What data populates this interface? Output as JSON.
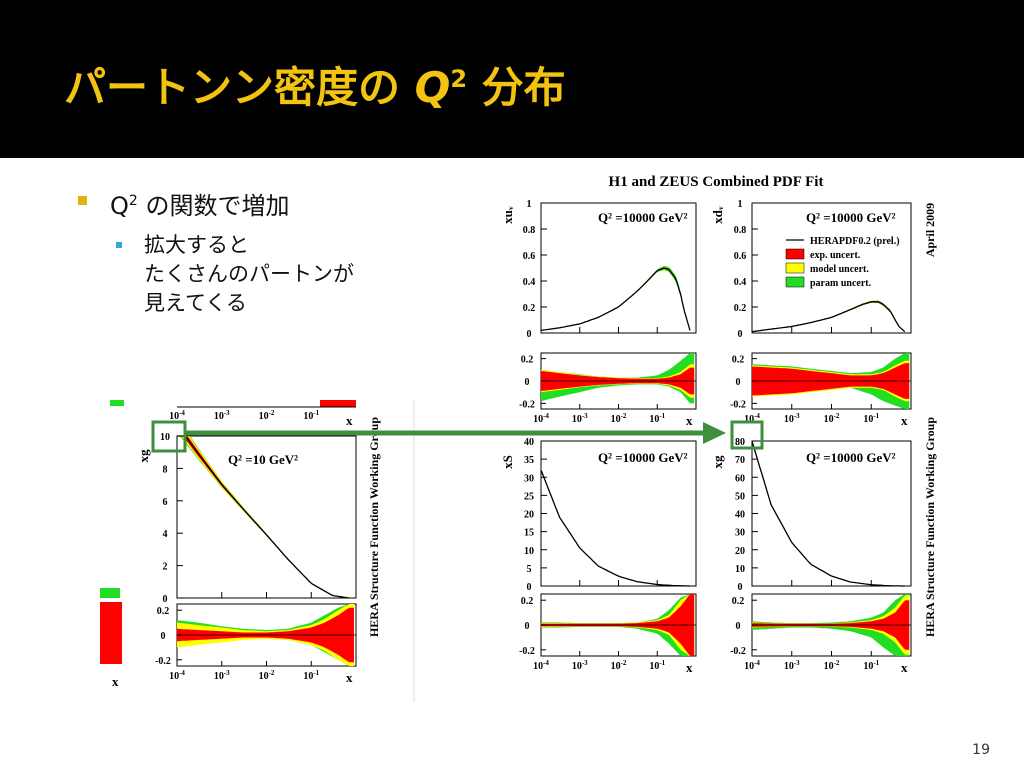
{
  "slide": {
    "title_pre": "パートンン密度の ",
    "title_q": "Q",
    "title_sup": "2",
    "title_post": " 分布",
    "page_number": "19"
  },
  "bullets": {
    "level1_pre": "Q",
    "level1_sup": "2",
    "level1_post": " の関数で増加",
    "level2_lines": [
      "拡大すると",
      "たくさんのパートンが",
      "見えてくる"
    ]
  },
  "colors": {
    "title_bar": "#000000",
    "title_text": "#f2c40f",
    "bullet1": "#e2b210",
    "bullet2": "#3aa6d8",
    "exp_band": "#ff0000",
    "model_band": "#ffff00",
    "param_band": "#22dd22",
    "highlight": "#3f8f3f"
  },
  "chart_data": [
    {
      "type": "area",
      "title": "H1 and ZEUS Combined PDF Fit",
      "side_label": "April 2009",
      "legend": {
        "placement": "top-right of xd_v panel",
        "entries": [
          "HERAPDF0.2 (prel.)",
          "exp. uncert.",
          "model uncert.",
          "param uncert."
        ]
      },
      "panels": [
        {
          "ylabel": "xu_v",
          "annotation": "Q² =10000 GeV²",
          "xlabel": "x",
          "xscale": "log",
          "xlim": [
            0.0001,
            1
          ],
          "ylim": [
            0,
            1
          ],
          "yticks": [
            "0",
            "0.2",
            "0.4",
            "0.6",
            "0.8",
            "1"
          ],
          "xticks": [
            "10^-4",
            "10^-3",
            "10^-2",
            "10^-1"
          ],
          "central": {
            "x": [
              0.0001,
              0.0003,
              0.001,
              0.003,
              0.01,
              0.03,
              0.06,
              0.1,
              0.15,
              0.2,
              0.3,
              0.4,
              0.5,
              0.7
            ],
            "y": [
              0.02,
              0.04,
              0.07,
              0.12,
              0.2,
              0.32,
              0.41,
              0.48,
              0.5,
              0.49,
              0.42,
              0.3,
              0.17,
              0.02
            ]
          },
          "ratio": {
            "ylim": [
              -0.25,
              0.25
            ],
            "yticks": [
              "-0.2",
              "0",
              "0.2"
            ],
            "x": [
              0.0001,
              0.0003,
              0.001,
              0.003,
              0.01,
              0.03,
              0.1,
              0.2,
              0.4,
              0.7
            ],
            "exp": [
              0.09,
              0.07,
              0.05,
              0.035,
              0.025,
              0.02,
              0.02,
              0.03,
              0.06,
              0.12
            ],
            "model": [
              0.1,
              0.08,
              0.055,
              0.04,
              0.03,
              0.025,
              0.025,
              0.04,
              0.08,
              0.15
            ],
            "param_up": [
              0.1,
              0.08,
              0.06,
              0.04,
              0.03,
              0.03,
              0.05,
              0.1,
              0.18,
              0.25
            ],
            "param_low": [
              -0.18,
              -0.14,
              -0.1,
              -0.06,
              -0.04,
              -0.03,
              -0.03,
              -0.05,
              -0.1,
              -0.2
            ]
          }
        },
        {
          "ylabel": "xd_v",
          "annotation": "Q² =10000 GeV²",
          "xlabel": "x",
          "xscale": "log",
          "xlim": [
            0.0001,
            1
          ],
          "ylim": [
            0,
            1
          ],
          "yticks": [
            "0",
            "0.2",
            "0.4",
            "0.6",
            "0.8",
            "1"
          ],
          "xticks": [
            "10^-4",
            "10^-3",
            "10^-2",
            "10^-1"
          ],
          "central": {
            "x": [
              0.0001,
              0.0003,
              0.001,
              0.003,
              0.01,
              0.03,
              0.06,
              0.1,
              0.15,
              0.2,
              0.3,
              0.4,
              0.5,
              0.7
            ],
            "y": [
              0.01,
              0.03,
              0.05,
              0.08,
              0.12,
              0.18,
              0.22,
              0.24,
              0.24,
              0.22,
              0.17,
              0.1,
              0.05,
              0.01
            ]
          },
          "ratio": {
            "ylim": [
              -0.25,
              0.25
            ],
            "yticks": [
              "-0.2",
              "0",
              "0.2"
            ],
            "x": [
              0.0001,
              0.0003,
              0.001,
              0.003,
              0.01,
              0.03,
              0.1,
              0.2,
              0.4,
              0.7
            ],
            "exp": [
              0.13,
              0.12,
              0.11,
              0.09,
              0.07,
              0.05,
              0.05,
              0.07,
              0.12,
              0.16
            ],
            "model": [
              0.14,
              0.13,
              0.12,
              0.1,
              0.08,
              0.06,
              0.06,
              0.08,
              0.14,
              0.18
            ],
            "param_up": [
              0.15,
              0.14,
              0.13,
              0.11,
              0.09,
              0.07,
              0.08,
              0.12,
              0.2,
              0.25
            ],
            "param_low": [
              -0.1,
              -0.09,
              -0.08,
              -0.06,
              -0.05,
              -0.06,
              -0.12,
              -0.18,
              -0.22,
              -0.25
            ]
          }
        },
        {
          "ylabel": "xS",
          "annotation": "Q² =10000 GeV²",
          "xlabel": "x",
          "xscale": "log",
          "xlim": [
            0.0001,
            1
          ],
          "ylim": [
            0,
            40
          ],
          "yticks": [
            "0",
            "5",
            "10",
            "15",
            "20",
            "25",
            "30",
            "35",
            "40"
          ],
          "xticks": [
            "10^-4",
            "10^-3",
            "10^-2",
            "10^-1"
          ],
          "central": {
            "x": [
              0.0001,
              0.0003,
              0.001,
              0.003,
              0.01,
              0.03,
              0.1,
              0.3,
              0.7
            ],
            "y": [
              32,
              19,
              10.5,
              5.5,
              2.7,
              1.2,
              0.4,
              0.08,
              0.0
            ]
          },
          "ratio": {
            "ylim": [
              -0.25,
              0.25
            ],
            "yticks": [
              "-0.2",
              "0",
              "0.2"
            ],
            "x": [
              0.0001,
              0.0003,
              0.001,
              0.003,
              0.01,
              0.03,
              0.1,
              0.2,
              0.4,
              0.7
            ],
            "exp": [
              0.01,
              0.01,
              0.01,
              0.01,
              0.01,
              0.015,
              0.03,
              0.06,
              0.15,
              0.25
            ],
            "model": [
              0.015,
              0.015,
              0.012,
              0.012,
              0.012,
              0.02,
              0.04,
              0.08,
              0.2,
              0.25
            ],
            "param_up": [
              0.02,
              0.02,
              0.015,
              0.015,
              0.015,
              0.02,
              0.05,
              0.12,
              0.22,
              0.25
            ],
            "param_low": [
              -0.02,
              -0.02,
              -0.015,
              -0.015,
              -0.015,
              -0.03,
              -0.07,
              -0.15,
              -0.25,
              -0.25
            ]
          }
        },
        {
          "ylabel": "xg",
          "annotation": "Q² =10000 GeV²",
          "xlabel": "x",
          "xscale": "log",
          "xlim": [
            0.0001,
            1
          ],
          "ylim": [
            0,
            80
          ],
          "yticks": [
            "0",
            "10",
            "20",
            "30",
            "40",
            "50",
            "60",
            "70",
            "80"
          ],
          "xticks": [
            "10^-4",
            "10^-3",
            "10^-2",
            "10^-1"
          ],
          "central": {
            "x": [
              0.0001,
              0.0003,
              0.001,
              0.003,
              0.01,
              0.03,
              0.1,
              0.3,
              0.7
            ],
            "y": [
              80,
              45,
              24,
              12,
              5.5,
              2.2,
              0.7,
              0.1,
              0.0
            ]
          },
          "ratio": {
            "ylim": [
              -0.25,
              0.25
            ],
            "yticks": [
              "-0.2",
              "0",
              "0.2"
            ],
            "x": [
              0.0001,
              0.0003,
              0.001,
              0.003,
              0.01,
              0.03,
              0.1,
              0.2,
              0.4,
              0.7
            ],
            "exp": [
              0.015,
              0.012,
              0.01,
              0.01,
              0.01,
              0.015,
              0.03,
              0.05,
              0.1,
              0.2
            ],
            "model": [
              0.02,
              0.015,
              0.012,
              0.012,
              0.012,
              0.02,
              0.04,
              0.07,
              0.14,
              0.24
            ],
            "param_up": [
              0.03,
              0.02,
              0.015,
              0.015,
              0.02,
              0.03,
              0.06,
              0.1,
              0.2,
              0.25
            ],
            "param_low": [
              -0.04,
              -0.03,
              -0.02,
              -0.02,
              -0.03,
              -0.05,
              -0.1,
              -0.18,
              -0.25,
              -0.25
            ]
          }
        }
      ]
    },
    {
      "type": "area",
      "side_label": "HERA Structure Function Working Group",
      "panels": [
        {
          "ylabel": "xg",
          "annotation": "Q² =10 GeV²",
          "xlabel": "x",
          "xscale": "log",
          "xlim": [
            0.0001,
            1
          ],
          "ylim": [
            0,
            10
          ],
          "yticks": [
            "0",
            "2",
            "4",
            "6",
            "8",
            "10"
          ],
          "xticks": [
            "10^-4",
            "10^-3",
            "10^-2",
            "10^-1"
          ],
          "central": {
            "x": [
              0.0001,
              0.0003,
              0.001,
              0.003,
              0.01,
              0.03,
              0.1,
              0.3,
              0.7
            ],
            "y": [
              10.7,
              8.9,
              7.0,
              5.5,
              3.9,
              2.4,
              0.9,
              0.15,
              0.0
            ]
          },
          "ratio": {
            "ylim": [
              -0.25,
              0.25
            ],
            "yticks": [
              "-0.2",
              "0",
              "0.2"
            ],
            "x": [
              0.0001,
              0.0003,
              0.001,
              0.003,
              0.01,
              0.03,
              0.1,
              0.2,
              0.4,
              0.7
            ],
            "exp": [
              0.05,
              0.04,
              0.03,
              0.02,
              0.02,
              0.03,
              0.06,
              0.1,
              0.16,
              0.22
            ],
            "model": [
              0.1,
              0.08,
              0.06,
              0.04,
              0.03,
              0.04,
              0.08,
              0.13,
              0.2,
              0.25
            ],
            "param_up": [
              0.12,
              0.1,
              0.07,
              0.05,
              0.04,
              0.05,
              0.1,
              0.16,
              0.22,
              0.25
            ],
            "param_low": [
              -0.06,
              -0.05,
              -0.04,
              -0.03,
              -0.03,
              -0.04,
              -0.08,
              -0.14,
              -0.2,
              -0.25
            ]
          }
        }
      ]
    }
  ]
}
